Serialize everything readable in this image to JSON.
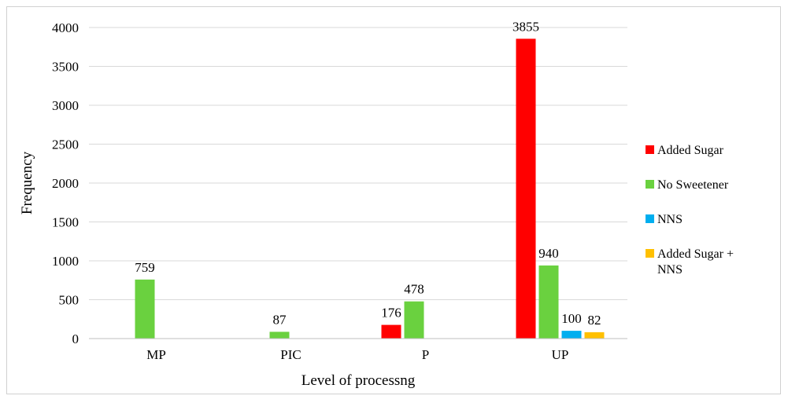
{
  "chart_data": {
    "type": "bar",
    "title": "",
    "xlabel": "Level of processng",
    "ylabel": "Frequency",
    "ylim": [
      0,
      4000
    ],
    "yticks": [
      0,
      500,
      1000,
      1500,
      2000,
      2500,
      3000,
      3500,
      4000
    ],
    "grid": "horizontal",
    "legend_position": "right",
    "categories": [
      "MP",
      "PIC",
      "P",
      "UP"
    ],
    "series": [
      {
        "name": "Added Sugar",
        "color": "#ff0000",
        "values": [
          null,
          null,
          176,
          3855
        ]
      },
      {
        "name": "No Sweetener",
        "color": "#6ad13f",
        "values": [
          759,
          87,
          478,
          940
        ]
      },
      {
        "name": "NNS",
        "color": "#00aeef",
        "values": [
          null,
          null,
          null,
          100
        ]
      },
      {
        "name": "Added Sugar + NNS",
        "color": "#ffc000",
        "values": [
          null,
          null,
          null,
          82
        ]
      }
    ],
    "legend_lines": [
      [
        "Added Sugar"
      ],
      [
        "No Sweetener"
      ],
      [
        "NNS"
      ],
      [
        "Added Sugar +",
        "NNS"
      ]
    ]
  }
}
